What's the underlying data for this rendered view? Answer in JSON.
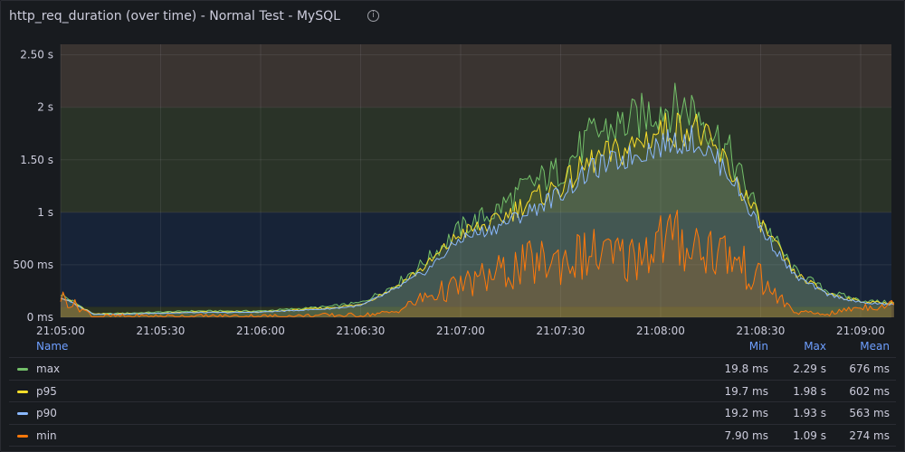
{
  "title": "http_req_duration (over time) - Normal Test - MySQL",
  "colors": {
    "max": "#73bf69",
    "p95": "#fade2a",
    "p90": "#8ab8ff",
    "min": "#ff780a",
    "band_red": "#3a3431",
    "band_green": "#2a3328",
    "band_blue": "#172337",
    "band_bottom": "#2b3322"
  },
  "legend": {
    "headers": {
      "name": "Name",
      "min": "Min",
      "max": "Max",
      "mean": "Mean"
    },
    "rows": [
      {
        "name": "max",
        "min": "19.8 ms",
        "max": "2.29 s",
        "mean": "676 ms"
      },
      {
        "name": "p95",
        "min": "19.7 ms",
        "max": "1.98 s",
        "mean": "602 ms"
      },
      {
        "name": "p90",
        "min": "19.2 ms",
        "max": "1.93 s",
        "mean": "563 ms"
      },
      {
        "name": "min",
        "min": "7.90 ms",
        "max": "1.09 s",
        "mean": "274 ms"
      }
    ]
  },
  "chart_data": {
    "type": "area",
    "title": "http_req_duration (over time) - Normal Test - MySQL",
    "x_ticks": [
      "21:05:00",
      "21:05:30",
      "21:06:00",
      "21:06:30",
      "21:07:00",
      "21:07:30",
      "21:08:00",
      "21:08:30",
      "21:09:00"
    ],
    "y_ticks": [
      "0 ms",
      "500 ms",
      "1 s",
      "1.50 s",
      "2 s",
      "2.50 s"
    ],
    "ylim": [
      0,
      2.6
    ],
    "y_unit": "s",
    "threshold_bands": [
      {
        "from": 0,
        "to": 0.1,
        "color": "band_bottom"
      },
      {
        "from": 0.1,
        "to": 1.0,
        "color": "band_blue"
      },
      {
        "from": 1.0,
        "to": 2.0,
        "color": "band_green"
      },
      {
        "from": 2.0,
        "to": 2.6,
        "color": "band_red"
      }
    ],
    "x": [
      "21:05:00",
      "21:05:10",
      "21:05:20",
      "21:05:30",
      "21:05:40",
      "21:05:50",
      "21:06:00",
      "21:06:10",
      "21:06:20",
      "21:06:30",
      "21:06:40",
      "21:06:50",
      "21:07:00",
      "21:07:10",
      "21:07:20",
      "21:07:30",
      "21:07:40",
      "21:07:50",
      "21:08:00",
      "21:08:10",
      "21:08:20",
      "21:08:30",
      "21:08:40",
      "21:08:50",
      "21:09:00",
      "21:09:10"
    ],
    "series": [
      {
        "name": "max",
        "values": [
          0.22,
          0.03,
          0.04,
          0.05,
          0.06,
          0.06,
          0.06,
          0.08,
          0.1,
          0.14,
          0.3,
          0.55,
          0.85,
          1.0,
          1.25,
          1.4,
          1.75,
          1.85,
          2.0,
          2.0,
          1.6,
          0.95,
          0.45,
          0.25,
          0.16,
          0.14
        ]
      },
      {
        "name": "p95",
        "values": [
          0.2,
          0.03,
          0.035,
          0.04,
          0.05,
          0.05,
          0.05,
          0.07,
          0.09,
          0.12,
          0.28,
          0.5,
          0.8,
          0.9,
          1.1,
          1.25,
          1.5,
          1.6,
          1.78,
          1.82,
          1.45,
          0.9,
          0.42,
          0.23,
          0.15,
          0.13
        ]
      },
      {
        "name": "p90",
        "values": [
          0.19,
          0.03,
          0.03,
          0.04,
          0.045,
          0.045,
          0.05,
          0.065,
          0.08,
          0.11,
          0.26,
          0.45,
          0.75,
          0.85,
          1.0,
          1.18,
          1.42,
          1.52,
          1.65,
          1.7,
          1.4,
          0.85,
          0.4,
          0.22,
          0.14,
          0.12
        ]
      },
      {
        "name": "min",
        "values": [
          0.2,
          0.01,
          0.01,
          0.01,
          0.01,
          0.01,
          0.01,
          0.01,
          0.02,
          0.02,
          0.05,
          0.2,
          0.3,
          0.4,
          0.5,
          0.55,
          0.6,
          0.55,
          0.75,
          0.7,
          0.6,
          0.35,
          0.05,
          0.03,
          0.1,
          0.12
        ]
      }
    ]
  }
}
